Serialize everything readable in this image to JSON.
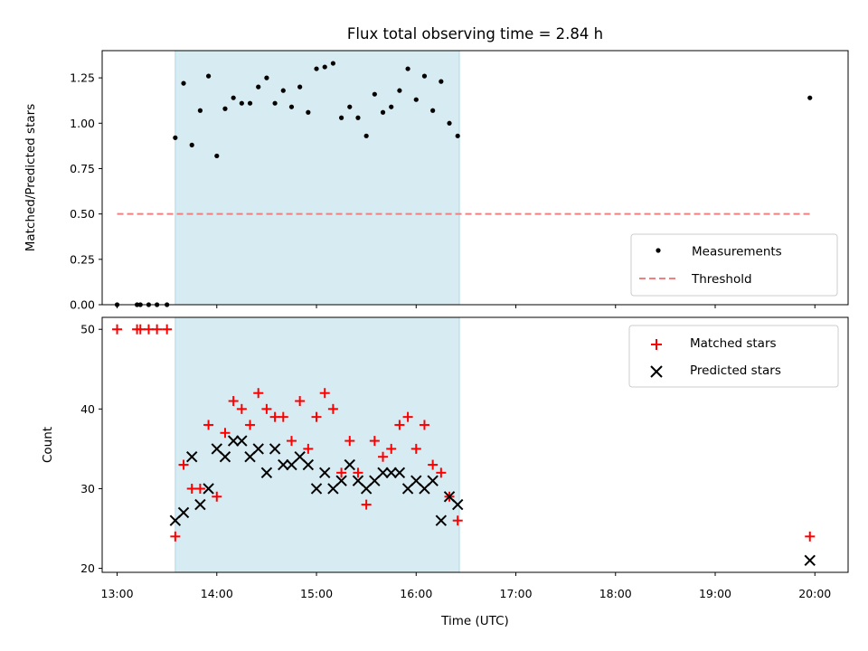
{
  "chart_data": [
    {
      "type": "scatter",
      "title": "Flux total observing time = 2.84 h",
      "xlabel": "",
      "ylabel": "Matched/Predicted stars",
      "xlim": [
        "12:51",
        "20:20"
      ],
      "ylim": [
        0,
        1.4
      ],
      "yticks": [
        "0.00",
        "0.25",
        "0.50",
        "0.75",
        "1.00",
        "1.25"
      ],
      "highlight_span": {
        "start": "13:35",
        "end": "16:26",
        "color": "#add8e6"
      },
      "legend_position": "lower-right",
      "series": [
        {
          "name": "Measurements",
          "marker": "dot",
          "color": "#000000",
          "points": [
            [
              "13:00",
              0
            ],
            [
              "13:12",
              0
            ],
            [
              "13:14",
              0
            ],
            [
              "13:19",
              0
            ],
            [
              "13:24",
              0
            ],
            [
              "13:30",
              0
            ],
            [
              "13:35",
              0.92
            ],
            [
              "13:40",
              1.22
            ],
            [
              "13:45",
              0.88
            ],
            [
              "13:50",
              1.07
            ],
            [
              "13:55",
              1.26
            ],
            [
              "14:00",
              0.82
            ],
            [
              "14:05",
              1.08
            ],
            [
              "14:10",
              1.14
            ],
            [
              "14:15",
              1.11
            ],
            [
              "14:20",
              1.11
            ],
            [
              "14:25",
              1.2
            ],
            [
              "14:30",
              1.25
            ],
            [
              "14:35",
              1.11
            ],
            [
              "14:40",
              1.18
            ],
            [
              "14:45",
              1.09
            ],
            [
              "14:50",
              1.2
            ],
            [
              "14:55",
              1.06
            ],
            [
              "15:00",
              1.3
            ],
            [
              "15:05",
              1.31
            ],
            [
              "15:10",
              1.33
            ],
            [
              "15:15",
              1.03
            ],
            [
              "15:20",
              1.09
            ],
            [
              "15:25",
              1.03
            ],
            [
              "15:30",
              0.93
            ],
            [
              "15:35",
              1.16
            ],
            [
              "15:40",
              1.06
            ],
            [
              "15:45",
              1.09
            ],
            [
              "15:50",
              1.18
            ],
            [
              "15:55",
              1.3
            ],
            [
              "16:00",
              1.13
            ],
            [
              "16:05",
              1.26
            ],
            [
              "16:10",
              1.07
            ],
            [
              "16:15",
              1.23
            ],
            [
              "16:20",
              1.0
            ],
            [
              "16:25",
              0.93
            ],
            [
              "19:57",
              1.14
            ]
          ]
        },
        {
          "name": "Threshold",
          "style": "dashed",
          "color": "#f08080",
          "points": [
            [
              "13:00",
              0.5
            ],
            [
              "19:57",
              0.5
            ]
          ]
        }
      ]
    },
    {
      "type": "scatter",
      "title": "",
      "xlabel": "Time (UTC)",
      "ylabel": "Count",
      "xlim": [
        "12:51",
        "20:20"
      ],
      "ylim": [
        19.5,
        51.5
      ],
      "xticks": [
        "13:00",
        "14:00",
        "15:00",
        "16:00",
        "17:00",
        "18:00",
        "19:00",
        "20:00"
      ],
      "yticks": [
        "20",
        "30",
        "40",
        "50"
      ],
      "highlight_span": {
        "start": "13:35",
        "end": "16:26",
        "color": "#add8e6"
      },
      "legend_position": "top-right",
      "series": [
        {
          "name": "Matched stars",
          "marker": "plus",
          "color": "#ff0000",
          "points": [
            [
              "13:00",
              50
            ],
            [
              "13:12",
              50
            ],
            [
              "13:14",
              50
            ],
            [
              "13:19",
              50
            ],
            [
              "13:24",
              50
            ],
            [
              "13:30",
              50
            ],
            [
              "13:35",
              24
            ],
            [
              "13:40",
              33
            ],
            [
              "13:45",
              30
            ],
            [
              "13:50",
              30
            ],
            [
              "13:55",
              38
            ],
            [
              "14:00",
              29
            ],
            [
              "14:05",
              37
            ],
            [
              "14:10",
              41
            ],
            [
              "14:15",
              40
            ],
            [
              "14:20",
              38
            ],
            [
              "14:25",
              42
            ],
            [
              "14:30",
              40
            ],
            [
              "14:35",
              39
            ],
            [
              "14:40",
              39
            ],
            [
              "14:45",
              36
            ],
            [
              "14:50",
              41
            ],
            [
              "14:55",
              35
            ],
            [
              "15:00",
              39
            ],
            [
              "15:05",
              42
            ],
            [
              "15:10",
              40
            ],
            [
              "15:15",
              32
            ],
            [
              "15:20",
              36
            ],
            [
              "15:25",
              32
            ],
            [
              "15:30",
              28
            ],
            [
              "15:35",
              36
            ],
            [
              "15:40",
              34
            ],
            [
              "15:45",
              35
            ],
            [
              "15:50",
              38
            ],
            [
              "15:55",
              39
            ],
            [
              "16:00",
              35
            ],
            [
              "16:05",
              38
            ],
            [
              "16:10",
              33
            ],
            [
              "16:15",
              32
            ],
            [
              "16:20",
              29
            ],
            [
              "16:25",
              26
            ],
            [
              "19:57",
              24
            ]
          ]
        },
        {
          "name": "Predicted stars",
          "marker": "x",
          "color": "#000000",
          "points": [
            [
              "13:35",
              26
            ],
            [
              "13:40",
              27
            ],
            [
              "13:45",
              34
            ],
            [
              "13:50",
              28
            ],
            [
              "13:55",
              30
            ],
            [
              "14:00",
              35
            ],
            [
              "14:05",
              34
            ],
            [
              "14:10",
              36
            ],
            [
              "14:15",
              36
            ],
            [
              "14:20",
              34
            ],
            [
              "14:25",
              35
            ],
            [
              "14:30",
              32
            ],
            [
              "14:35",
              35
            ],
            [
              "14:40",
              33
            ],
            [
              "14:45",
              33
            ],
            [
              "14:50",
              34
            ],
            [
              "14:55",
              33
            ],
            [
              "15:00",
              30
            ],
            [
              "15:05",
              32
            ],
            [
              "15:10",
              30
            ],
            [
              "15:15",
              31
            ],
            [
              "15:20",
              33
            ],
            [
              "15:25",
              31
            ],
            [
              "15:30",
              30
            ],
            [
              "15:35",
              31
            ],
            [
              "15:40",
              32
            ],
            [
              "15:45",
              32
            ],
            [
              "15:50",
              32
            ],
            [
              "15:55",
              30
            ],
            [
              "16:00",
              31
            ],
            [
              "16:05",
              30
            ],
            [
              "16:10",
              31
            ],
            [
              "16:15",
              26
            ],
            [
              "16:20",
              29
            ],
            [
              "16:25",
              28
            ],
            [
              "19:57",
              21
            ]
          ]
        }
      ]
    }
  ]
}
